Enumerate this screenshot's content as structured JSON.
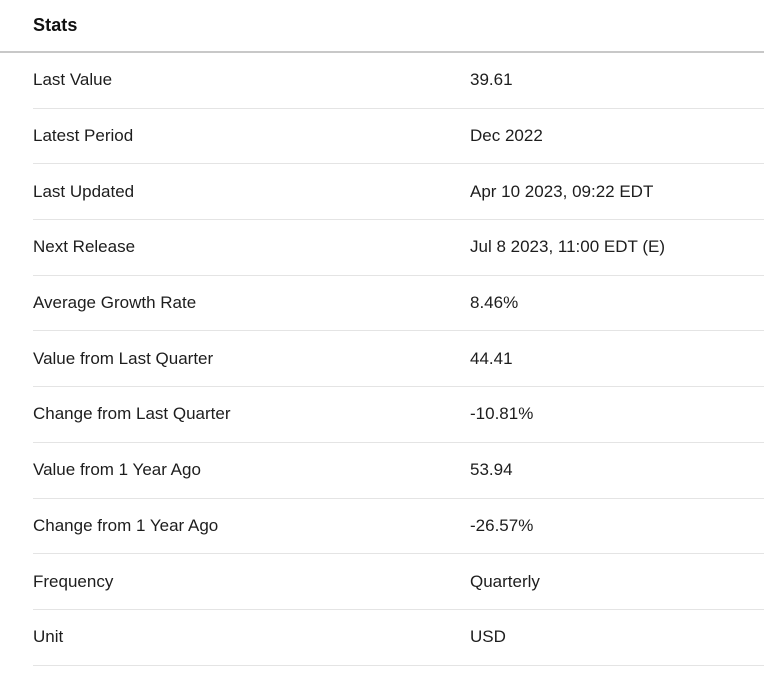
{
  "header": {
    "title": "Stats"
  },
  "rows": [
    {
      "label": "Last Value",
      "value": "39.61"
    },
    {
      "label": "Latest Period",
      "value": "Dec 2022"
    },
    {
      "label": "Last Updated",
      "value": "Apr 10 2023, 09:22 EDT"
    },
    {
      "label": "Next Release",
      "value": "Jul 8 2023, 11:00 EDT (E)"
    },
    {
      "label": "Average Growth Rate",
      "value": "8.46%"
    },
    {
      "label": "Value from Last Quarter",
      "value": "44.41"
    },
    {
      "label": "Change from Last Quarter",
      "value": "-10.81%"
    },
    {
      "label": "Value from 1 Year Ago",
      "value": "53.94"
    },
    {
      "label": "Change from 1 Year Ago",
      "value": "-26.57%"
    },
    {
      "label": "Frequency",
      "value": "Quarterly"
    },
    {
      "label": "Unit",
      "value": "USD"
    }
  ],
  "colors": {
    "text": "#1d1d1d",
    "header_divider": "#c8c8c8",
    "row_divider": "#e4e4e4",
    "background": "#ffffff"
  }
}
